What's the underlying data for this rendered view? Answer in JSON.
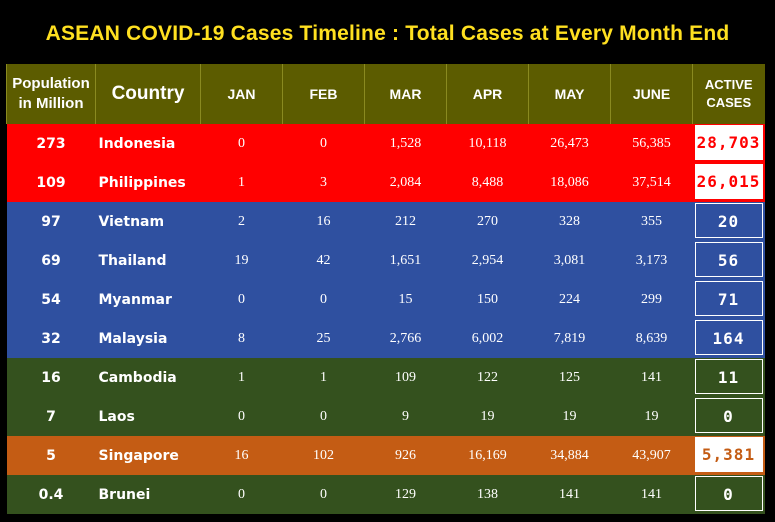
{
  "title": "ASEAN COVID-19 Cases Timeline : Total Cases at Every Month End",
  "colors": {
    "header_bg": "#5c5c00",
    "title": "#ffe020",
    "red_group": "#ff0000",
    "blue_group": "#2f50a0",
    "green_group": "#34511e",
    "orange_group": "#c45c14"
  },
  "header": {
    "population_line1": "Population",
    "population_line2": "in Million",
    "country": "Country",
    "months": [
      "JAN",
      "FEB",
      "MAR",
      "APR",
      "MAY",
      "JUNE"
    ],
    "active_line1": "ACTIVE",
    "active_line2": "CASES"
  },
  "chart_data": {
    "type": "table",
    "title": "ASEAN COVID-19 Cases Timeline : Total Cases at Every Month End",
    "columns": [
      "Population in Million",
      "Country",
      "JAN",
      "FEB",
      "MAR",
      "APR",
      "MAY",
      "JUNE",
      "ACTIVE CASES"
    ],
    "rows": [
      {
        "population": "273",
        "country": "Indonesia",
        "values": [
          "0",
          "0",
          "1,528",
          "10,118",
          "26,473",
          "56,385"
        ],
        "active": "28,703",
        "group": "red"
      },
      {
        "population": "109",
        "country": "Philippines",
        "values": [
          "1",
          "3",
          "2,084",
          "8,488",
          "18,086",
          "37,514"
        ],
        "active": "26,015",
        "group": "red"
      },
      {
        "population": "97",
        "country": "Vietnam",
        "values": [
          "2",
          "16",
          "212",
          "270",
          "328",
          "355"
        ],
        "active": "20",
        "group": "blue"
      },
      {
        "population": "69",
        "country": "Thailand",
        "values": [
          "19",
          "42",
          "1,651",
          "2,954",
          "3,081",
          "3,173"
        ],
        "active": "56",
        "group": "blue"
      },
      {
        "population": "54",
        "country": "Myanmar",
        "values": [
          "0",
          "0",
          "15",
          "150",
          "224",
          "299"
        ],
        "active": "71",
        "group": "blue"
      },
      {
        "population": "32",
        "country": "Malaysia",
        "values": [
          "8",
          "25",
          "2,766",
          "6,002",
          "7,819",
          "8,639"
        ],
        "active": "164",
        "group": "blue"
      },
      {
        "population": "16",
        "country": "Cambodia",
        "values": [
          "1",
          "1",
          "109",
          "122",
          "125",
          "141"
        ],
        "active": "11",
        "group": "green"
      },
      {
        "population": "7",
        "country": "Laos",
        "values": [
          "0",
          "0",
          "9",
          "19",
          "19",
          "19"
        ],
        "active": "0",
        "group": "green"
      },
      {
        "population": "5",
        "country": "Singapore",
        "values": [
          "16",
          "102",
          "926",
          "16,169",
          "34,884",
          "43,907"
        ],
        "active": "5,381",
        "group": "orange"
      },
      {
        "population": "0.4",
        "country": "Brunei",
        "values": [
          "0",
          "0",
          "129",
          "138",
          "141",
          "141"
        ],
        "active": "0",
        "group": "dk"
      }
    ]
  }
}
